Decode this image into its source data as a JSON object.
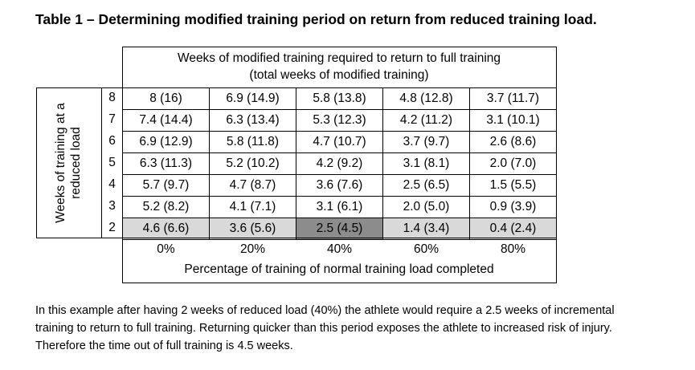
{
  "title": "Table 1 – Determining modified training period on return from reduced training load.",
  "header": {
    "line1": "Weeks of modified training required to return to full training",
    "line2": "(total weeks of modified training)"
  },
  "row_axis_label": {
    "line1": "Weeks of training at a",
    "line2": "reduced load"
  },
  "rows": [
    {
      "weeks": "8",
      "cells": [
        "8 (16)",
        "6.9 (14.9)",
        "5.8 (13.8)",
        "4.8 (12.8)",
        "3.7 (11.7)"
      ]
    },
    {
      "weeks": "7",
      "cells": [
        "7.4 (14.4)",
        "6.3 (13.4)",
        "5.3 (12.3)",
        "4.2 (11.2)",
        "3.1 (10.1)"
      ]
    },
    {
      "weeks": "6",
      "cells": [
        "6.9 (12.9)",
        "5.8 (11.8)",
        "4.7 (10.7)",
        "3.7 (9.7)",
        "2.6 (8.6)"
      ]
    },
    {
      "weeks": "5",
      "cells": [
        "6.3 (11.3)",
        "5.2 (10.2)",
        "4.2 (9.2)",
        "3.1 (8.1)",
        "2.0 (7.0)"
      ]
    },
    {
      "weeks": "4",
      "cells": [
        "5.7 (9.7)",
        "4.7 (8.7)",
        "3.6 (7.6)",
        "2.5 (6.5)",
        "1.5 (5.5)"
      ]
    },
    {
      "weeks": "3",
      "cells": [
        "5.2 (8.2)",
        "4.1 (7.1)",
        "3.1 (6.1)",
        "2.0 (5.0)",
        "0.9 (3.9)"
      ]
    },
    {
      "weeks": "2",
      "cells": [
        "4.6 (6.6)",
        "3.6 (5.6)",
        "2.5 (4.5)",
        "1.4 (3.4)",
        "0.4 (2.4)"
      ]
    }
  ],
  "percentages": [
    "0%",
    "20%",
    "40%",
    "60%",
    "80%"
  ],
  "column_axis_label": "Percentage of training of normal training load completed",
  "note": {
    "line1": "In this example after having 2 weeks of reduced load (40%) the athlete would require a 2.5 weeks of incremental",
    "line2": "training to return to full training. Returning quicker than this period exposes the athlete to increased risk of injury.",
    "line3": "Therefore the time out of full training is 4.5 weeks."
  },
  "colors": {
    "highlight_row": "#d9d9d9",
    "highlight_cell": "#8c8c8c"
  }
}
